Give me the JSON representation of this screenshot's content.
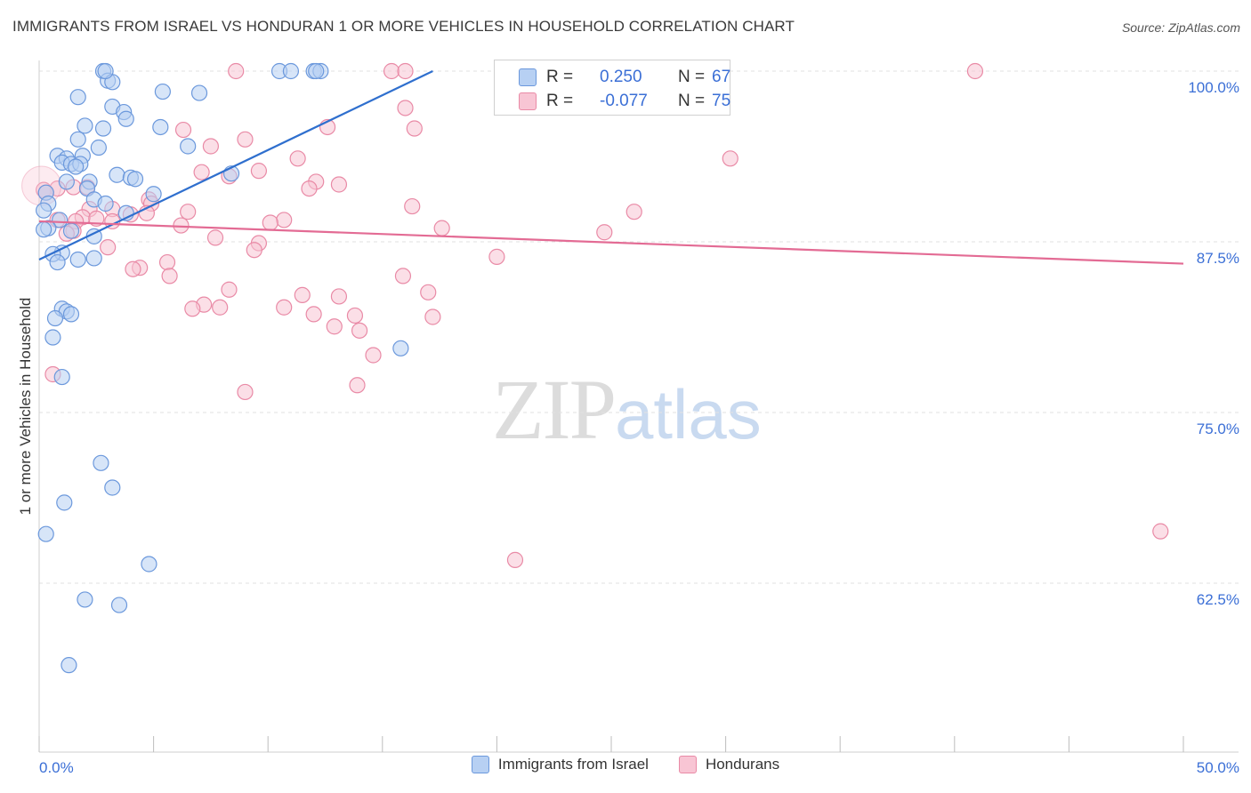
{
  "title": "IMMIGRANTS FROM ISRAEL VS HONDURAN 1 OR MORE VEHICLES IN HOUSEHOLD CORRELATION CHART",
  "source": "Source: ZipAtlas.com",
  "watermark": {
    "zip": "ZIP",
    "atlas": "atlas"
  },
  "colors": {
    "blue_fill": "#b7d0f3",
    "blue_stroke": "#6b98dc",
    "blue_line": "#2f6fce",
    "pink_fill": "#f8c5d4",
    "pink_stroke": "#e98aa6",
    "pink_line": "#e36b94",
    "axis_label": "#3b6fd6"
  },
  "stats": [
    {
      "r_label": "R =",
      "r_value": " 0.250",
      "n_label": "N =",
      "n_value": "67",
      "series": "blue"
    },
    {
      "r_label": "R =",
      "r_value": "-0.077",
      "n_label": "N =",
      "n_value": "75",
      "series": "pink"
    }
  ],
  "legend": [
    {
      "label": "Immigrants from Israel",
      "series": "blue"
    },
    {
      "label": "Hondurans",
      "series": "pink"
    }
  ],
  "chart_data": {
    "type": "scatter",
    "title": "IMMIGRANTS FROM ISRAEL VS HONDURAN 1 OR MORE VEHICLES IN HOUSEHOLD CORRELATION CHART",
    "ylabel": "1 or more Vehicles in Household",
    "xlabel": "",
    "xlim": [
      0,
      50
    ],
    "ylim": [
      52.5,
      100.5
    ],
    "x_ticks": [
      "0.0%",
      "50.0%"
    ],
    "y_ticks": [
      {
        "value": 100,
        "label": "100.0%"
      },
      {
        "value": 87.5,
        "label": "87.5%"
      },
      {
        "value": 75,
        "label": "75.0%"
      },
      {
        "value": 62.5,
        "label": "62.5%"
      }
    ],
    "series": [
      {
        "name": "Immigrants from Israel",
        "color": "blue",
        "trend": [
          [
            0,
            86.2
          ],
          [
            17.2,
            100
          ]
        ],
        "points": [
          [
            2.8,
            100
          ],
          [
            3.0,
            99.3
          ],
          [
            3.2,
            99.2
          ],
          [
            5.4,
            98.5
          ],
          [
            7.0,
            98.4
          ],
          [
            1.7,
            98.1
          ],
          [
            3.2,
            97.4
          ],
          [
            3.7,
            97.0
          ],
          [
            3.8,
            96.5
          ],
          [
            2.0,
            96.0
          ],
          [
            5.3,
            95.9
          ],
          [
            2.8,
            95.8
          ],
          [
            1.7,
            95.0
          ],
          [
            6.5,
            94.5
          ],
          [
            2.6,
            94.4
          ],
          [
            0.8,
            93.8
          ],
          [
            1.9,
            93.8
          ],
          [
            1.2,
            93.6
          ],
          [
            1.0,
            93.3
          ],
          [
            1.4,
            93.2
          ],
          [
            1.8,
            93.2
          ],
          [
            1.6,
            93.0
          ],
          [
            8.4,
            92.5
          ],
          [
            3.4,
            92.4
          ],
          [
            4.0,
            92.2
          ],
          [
            4.2,
            92.1
          ],
          [
            1.2,
            91.9
          ],
          [
            2.2,
            91.9
          ],
          [
            2.1,
            91.4
          ],
          [
            5.0,
            91.0
          ],
          [
            0.3,
            91.1
          ],
          [
            2.4,
            90.6
          ],
          [
            0.4,
            90.3
          ],
          [
            2.9,
            90.3
          ],
          [
            0.2,
            89.8
          ],
          [
            3.8,
            89.6
          ],
          [
            0.9,
            89.1
          ],
          [
            0.4,
            88.5
          ],
          [
            0.2,
            88.4
          ],
          [
            1.4,
            88.3
          ],
          [
            2.4,
            87.9
          ],
          [
            1.0,
            86.7
          ],
          [
            0.6,
            86.6
          ],
          [
            2.4,
            86.3
          ],
          [
            1.7,
            86.2
          ],
          [
            0.8,
            86.0
          ],
          [
            1.0,
            82.6
          ],
          [
            1.2,
            82.4
          ],
          [
            1.4,
            82.2
          ],
          [
            0.7,
            81.9
          ],
          [
            0.6,
            80.5
          ],
          [
            15.8,
            79.7
          ],
          [
            1.0,
            77.6
          ],
          [
            2.7,
            71.3
          ],
          [
            3.2,
            69.5
          ],
          [
            1.1,
            68.4
          ],
          [
            0.3,
            66.1
          ],
          [
            4.8,
            63.9
          ],
          [
            2.0,
            61.3
          ],
          [
            3.5,
            60.9
          ],
          [
            1.3,
            56.5
          ],
          [
            10.5,
            100
          ],
          [
            11.0,
            100
          ],
          [
            12.0,
            100
          ],
          [
            12.3,
            100
          ],
          [
            12.1,
            100
          ],
          [
            2.9,
            100
          ]
        ]
      },
      {
        "name": "Hondurans",
        "color": "pink",
        "trend": [
          [
            0,
            89.0
          ],
          [
            50,
            85.9
          ]
        ],
        "points": [
          [
            8.6,
            100
          ],
          [
            15.4,
            100
          ],
          [
            16.0,
            100
          ],
          [
            28.2,
            100
          ],
          [
            28.8,
            100
          ],
          [
            40.9,
            100
          ],
          [
            16.0,
            97.3
          ],
          [
            12.6,
            95.9
          ],
          [
            16.4,
            95.8
          ],
          [
            6.3,
            95.7
          ],
          [
            9.0,
            95.0
          ],
          [
            7.5,
            94.5
          ],
          [
            11.3,
            93.6
          ],
          [
            30.2,
            93.6
          ],
          [
            9.6,
            92.7
          ],
          [
            7.1,
            92.6
          ],
          [
            8.3,
            92.3
          ],
          [
            12.1,
            91.9
          ],
          [
            13.1,
            91.7
          ],
          [
            0.8,
            91.4
          ],
          [
            11.8,
            91.4
          ],
          [
            1.5,
            91.5
          ],
          [
            2.1,
            91.5
          ],
          [
            0.2,
            91.3
          ],
          [
            0.3,
            91.1
          ],
          [
            4.8,
            90.6
          ],
          [
            4.9,
            90.3
          ],
          [
            16.3,
            90.1
          ],
          [
            2.2,
            89.9
          ],
          [
            3.2,
            89.9
          ],
          [
            26.0,
            89.7
          ],
          [
            6.5,
            89.7
          ],
          [
            4.7,
            89.6
          ],
          [
            4.0,
            89.5
          ],
          [
            1.9,
            89.3
          ],
          [
            2.5,
            89.2
          ],
          [
            0.8,
            89.1
          ],
          [
            10.7,
            89.1
          ],
          [
            1.6,
            89.0
          ],
          [
            3.2,
            89.0
          ],
          [
            10.1,
            88.9
          ],
          [
            6.2,
            88.7
          ],
          [
            17.6,
            88.5
          ],
          [
            1.5,
            88.3
          ],
          [
            24.7,
            88.2
          ],
          [
            7.7,
            87.8
          ],
          [
            9.6,
            87.4
          ],
          [
            3.0,
            87.1
          ],
          [
            9.4,
            86.9
          ],
          [
            20.0,
            86.4
          ],
          [
            5.6,
            86.0
          ],
          [
            4.4,
            85.6
          ],
          [
            4.1,
            85.5
          ],
          [
            5.7,
            85.0
          ],
          [
            15.9,
            85.0
          ],
          [
            8.3,
            84.0
          ],
          [
            17.0,
            83.8
          ],
          [
            11.5,
            83.6
          ],
          [
            13.1,
            83.5
          ],
          [
            7.2,
            82.9
          ],
          [
            10.7,
            82.7
          ],
          [
            7.9,
            82.7
          ],
          [
            6.7,
            82.6
          ],
          [
            12.0,
            82.2
          ],
          [
            13.8,
            82.1
          ],
          [
            17.2,
            82.0
          ],
          [
            12.9,
            81.3
          ],
          [
            14.0,
            81.0
          ],
          [
            14.6,
            79.2
          ],
          [
            13.9,
            77.0
          ],
          [
            9.0,
            76.5
          ],
          [
            0.6,
            77.8
          ],
          [
            20.8,
            64.2
          ],
          [
            49.0,
            66.3
          ],
          [
            1.2,
            88.1
          ]
        ]
      }
    ]
  }
}
